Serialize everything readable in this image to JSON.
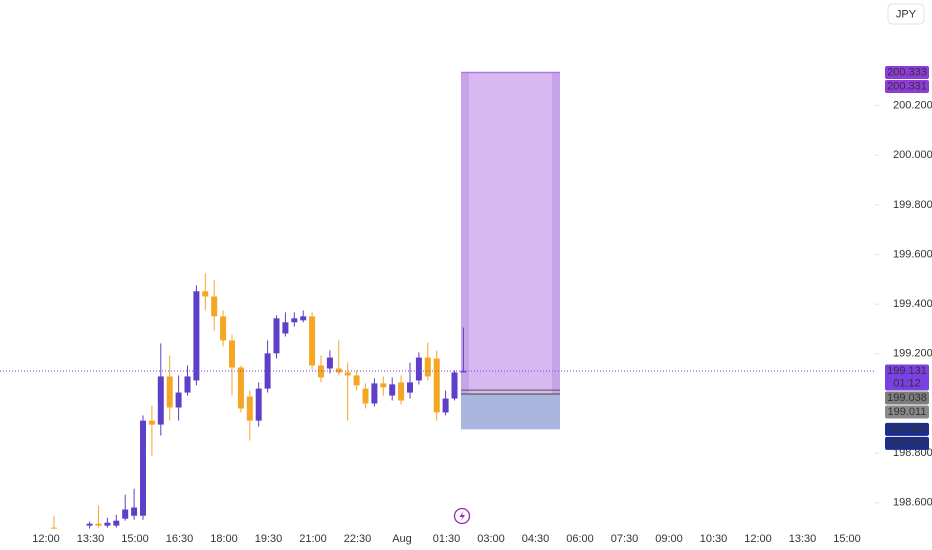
{
  "chart_data": {
    "type": "candlestick",
    "currency": "JPY",
    "ylim": [
      198.41,
      200.625
    ],
    "yticks": [
      {
        "value": 198.6,
        "label": "198.600"
      },
      {
        "value": 198.8,
        "label": "198.800"
      },
      {
        "value": 199.2,
        "label": "199.200"
      },
      {
        "value": 199.4,
        "label": "199.400"
      },
      {
        "value": 199.6,
        "label": "199.600"
      },
      {
        "value": 199.8,
        "label": "199.800"
      },
      {
        "value": 200.0,
        "label": "200.000"
      },
      {
        "value": 200.2,
        "label": "200.200"
      }
    ],
    "x_tick_labels": [
      "12:00",
      "13:30",
      "15:00",
      "16:30",
      "18:00",
      "19:30",
      "21:00",
      "22:30",
      "Aug",
      "01:30",
      "03:00",
      "04:30",
      "06:00",
      "07:30",
      "09:00",
      "10:30",
      "12:00",
      "13:30",
      "15:00"
    ],
    "up_color": "#5e3fc7",
    "down_color": "#f5a623",
    "open": [
      198.5,
      null,
      null,
      null,
      198.508,
      198.516,
      198.508,
      198.508,
      198.536,
      198.548,
      198.548,
      198.931,
      198.915,
      199.109,
      198.984,
      199.044,
      199.093,
      199.452,
      199.431,
      199.351,
      199.254,
      199.145,
      199.028,
      198.931,
      199.06,
      199.202,
      199.282,
      199.327,
      199.335,
      199.351,
      199.153,
      199.141,
      199.141,
      199.125,
      199.113,
      199.06,
      199.0,
      199.081,
      199.032,
      199.085,
      199.044,
      199.093,
      199.185,
      199.181,
      198.964,
      199.02,
      199.125
    ],
    "high": [
      198.548,
      null,
      null,
      null,
      198.524,
      198.589,
      198.54,
      198.552,
      198.633,
      198.657,
      198.952,
      198.992,
      199.242,
      199.194,
      199.113,
      199.153,
      199.476,
      199.524,
      199.496,
      199.375,
      199.278,
      199.153,
      199.052,
      199.085,
      199.254,
      199.355,
      199.367,
      199.367,
      199.375,
      199.367,
      199.194,
      199.214,
      199.254,
      199.165,
      199.133,
      199.081,
      199.101,
      199.109,
      199.105,
      199.113,
      199.165,
      199.206,
      199.246,
      199.214,
      199.052,
      199.133,
      199.306
    ],
    "low": [
      198.496,
      null,
      null,
      null,
      198.496,
      198.5,
      198.5,
      198.5,
      198.528,
      198.532,
      198.532,
      198.79,
      198.871,
      198.931,
      198.931,
      199.032,
      199.073,
      199.375,
      199.294,
      199.23,
      199.032,
      198.964,
      198.851,
      198.907,
      199.044,
      199.181,
      199.27,
      199.31,
      199.327,
      199.137,
      199.085,
      199.121,
      199.113,
      198.931,
      199.052,
      198.98,
      198.988,
      199.032,
      199.012,
      198.996,
      199.02,
      199.077,
      199.093,
      198.931,
      198.952,
      199.012,
      199.125
    ],
    "close": [
      198.496,
      null,
      null,
      null,
      198.516,
      198.508,
      198.52,
      198.528,
      198.573,
      198.581,
      198.931,
      198.915,
      199.109,
      198.984,
      199.044,
      199.109,
      199.452,
      199.431,
      199.351,
      199.254,
      199.145,
      198.98,
      198.931,
      199.06,
      199.202,
      199.343,
      199.327,
      199.343,
      199.351,
      199.153,
      199.105,
      199.185,
      199.125,
      199.113,
      199.073,
      199.0,
      199.081,
      199.065,
      199.077,
      199.012,
      199.085,
      199.185,
      199.109,
      198.964,
      199.02,
      199.125,
      199.131
    ],
    "last_price": {
      "value": 199.131,
      "countdown": "01:12",
      "color": "#7b3fe4"
    },
    "position": {
      "target": 200.333,
      "entry": 199.038,
      "stop": 198.896,
      "profit_color": "#d7b8f1",
      "loss_color": "#a9b7de"
    },
    "price_labels": [
      {
        "value": 200.333,
        "color": "#8e3bd8"
      },
      {
        "value": 200.331,
        "color": "#8e3bd8"
      },
      {
        "value": 199.038,
        "color": "#7d7d7d"
      },
      {
        "value": 199.011,
        "color": "#8a8a8a"
      },
      {
        "value": 198.896,
        "color": "#1b2d8f"
      },
      {
        "value": 198.896,
        "color": "#1b2d8f"
      }
    ]
  }
}
